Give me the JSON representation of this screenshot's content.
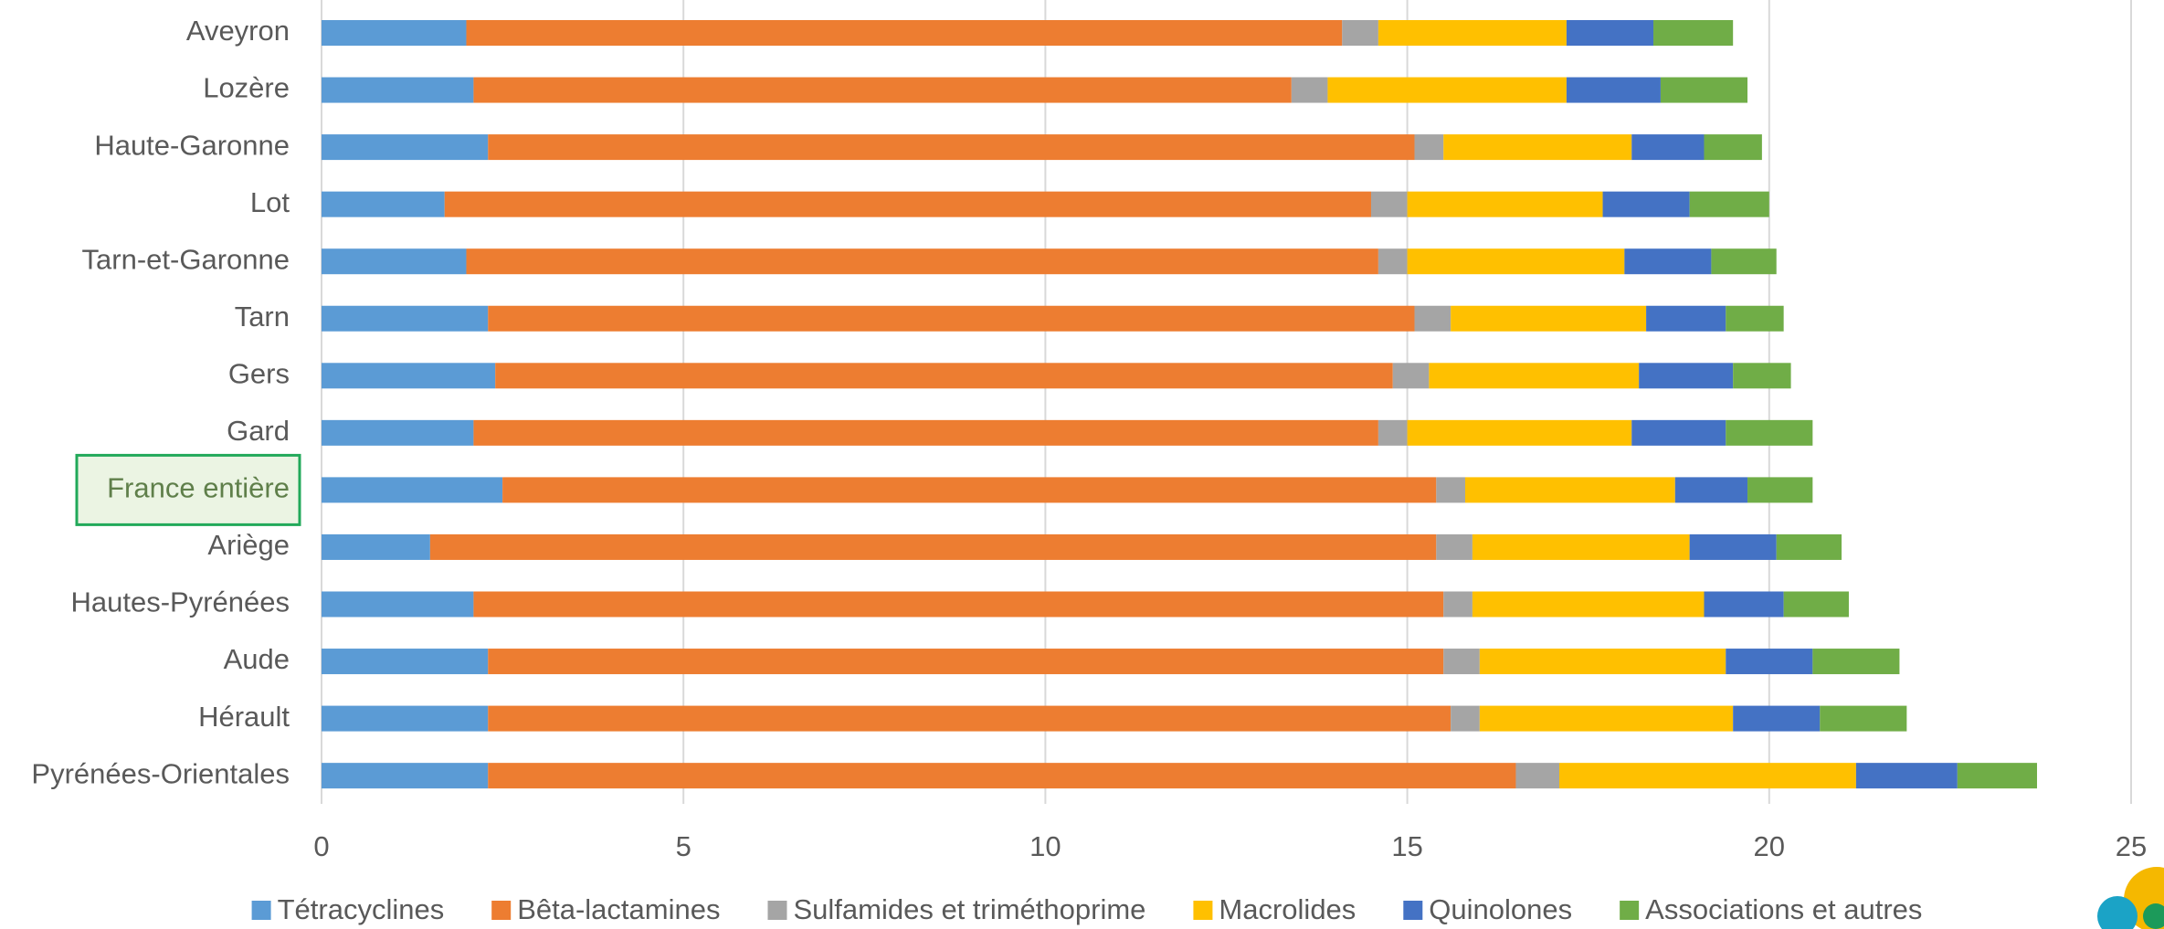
{
  "chart_data": {
    "type": "stacked_barh",
    "categories": [
      "Aveyron",
      "Lozère",
      "Haute-Garonne",
      "Lot",
      "Tarn-et-Garonne",
      "Tarn",
      "Gers",
      "Gard",
      "France entière",
      "Ariège",
      "Hautes-Pyrénées",
      "Aude",
      "Hérault",
      "Pyrénées-Orientales"
    ],
    "series": [
      {
        "name": "Tétracyclines",
        "color": "#5b9bd5",
        "values": [
          2.0,
          2.1,
          2.3,
          1.7,
          2.0,
          2.3,
          2.4,
          2.1,
          2.5,
          1.5,
          2.1,
          2.3,
          2.3,
          2.3
        ]
      },
      {
        "name": "Bêta-lactamines",
        "color": "#ed7d31",
        "values": [
          12.1,
          11.3,
          12.8,
          12.8,
          12.6,
          12.8,
          12.4,
          12.5,
          12.9,
          13.9,
          13.4,
          13.2,
          13.3,
          14.2
        ]
      },
      {
        "name": "Sulfamides et triméthoprime",
        "color": "#a5a5a5",
        "values": [
          0.5,
          0.5,
          0.4,
          0.5,
          0.4,
          0.5,
          0.5,
          0.4,
          0.4,
          0.5,
          0.4,
          0.5,
          0.4,
          0.6
        ]
      },
      {
        "name": "Macrolides",
        "color": "#ffc000",
        "values": [
          2.6,
          3.3,
          2.6,
          2.7,
          3.0,
          2.7,
          2.9,
          3.1,
          2.9,
          3.0,
          3.2,
          3.4,
          3.5,
          4.1
        ]
      },
      {
        "name": "Quinolones",
        "color": "#4472c4",
        "values": [
          1.2,
          1.3,
          1.0,
          1.2,
          1.2,
          1.1,
          1.3,
          1.3,
          1.0,
          1.2,
          1.1,
          1.2,
          1.2,
          1.4
        ]
      },
      {
        "name": "Associations et autres",
        "color": "#70ad47",
        "values": [
          1.1,
          1.2,
          0.8,
          1.1,
          0.9,
          0.8,
          0.8,
          1.2,
          0.9,
          0.9,
          0.9,
          1.2,
          1.2,
          1.1
        ]
      }
    ],
    "xlim": [
      0,
      25
    ],
    "xticks": [
      0,
      5,
      10,
      15,
      20,
      25
    ],
    "grid": true,
    "legend": "bottom",
    "highlight": "France entière"
  }
}
